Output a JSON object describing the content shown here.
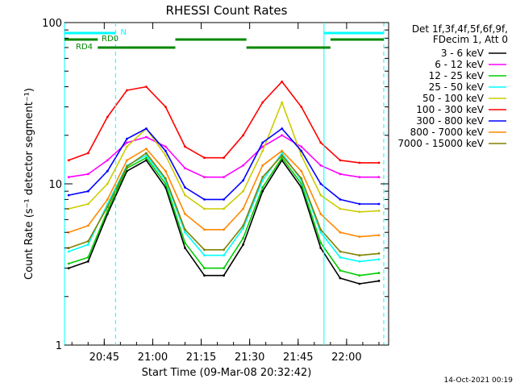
{
  "chart_data": {
    "type": "line",
    "title": "RHESSI Count Rates",
    "xlabel": "Start Time (09-Mar-08 20:32:42)",
    "ylabel": "Count Rate (s⁻¹ detector segment⁻¹)",
    "y_scale": "log",
    "ylim": [
      1,
      100
    ],
    "xlim": [
      "20:32:42",
      "22:13:00"
    ],
    "x_ticks": [
      "20:45",
      "21:00",
      "21:15",
      "21:30",
      "21:45",
      "22:00"
    ],
    "y_ticks": [
      "1",
      "10",
      "100"
    ],
    "grid": false,
    "legend_header": [
      "Det 1f,3f,4f,5f,6f,9f,",
      "FDecim 1, Att 0"
    ],
    "legend_position": "right",
    "timestamp": "14-Oct-2021 00:19",
    "x": [
      "20:34",
      "20:40",
      "20:46",
      "20:52",
      "20:58",
      "21:04",
      "21:10",
      "21:16",
      "21:22",
      "21:28",
      "21:34",
      "21:40",
      "21:46",
      "21:52",
      "21:58",
      "22:04",
      "22:10"
    ],
    "series": [
      {
        "name": "3 - 6 keV",
        "color": "#000000",
        "values": [
          3.0,
          3.3,
          6.5,
          12.0,
          14.0,
          9.5,
          4.0,
          2.7,
          2.7,
          4.2,
          9.0,
          14.0,
          9.5,
          4.0,
          2.6,
          2.4,
          2.5
        ]
      },
      {
        "name": "6 - 12 keV",
        "color": "#ff00ff",
        "values": [
          11.0,
          11.5,
          14.0,
          18.0,
          19.5,
          17.0,
          12.5,
          11.0,
          11.0,
          13.0,
          17.0,
          20.0,
          17.0,
          13.0,
          11.5,
          11.0,
          11.0
        ]
      },
      {
        "name": "12 - 25 keV",
        "color": "#00cc00",
        "values": [
          3.2,
          3.5,
          6.8,
          12.5,
          14.5,
          10.0,
          4.3,
          3.0,
          3.0,
          4.6,
          9.5,
          14.5,
          10.0,
          4.3,
          2.9,
          2.7,
          2.8
        ]
      },
      {
        "name": "25 - 50 keV",
        "color": "#00ffff",
        "values": [
          3.8,
          4.2,
          7.5,
          13.0,
          15.0,
          10.5,
          5.0,
          3.6,
          3.6,
          5.3,
          10.5,
          15.5,
          10.5,
          5.0,
          3.5,
          3.3,
          3.4
        ]
      },
      {
        "name": "50 - 100 keV",
        "color": "#cccc00",
        "values": [
          7.0,
          7.5,
          10.0,
          17.0,
          22.0,
          15.0,
          8.5,
          7.0,
          7.0,
          9.0,
          16.0,
          32.0,
          15.0,
          8.5,
          7.0,
          6.7,
          6.8
        ]
      },
      {
        "name": "100 - 300 keV",
        "color": "#ff0000",
        "values": [
          14.0,
          15.5,
          26.0,
          38.0,
          40.0,
          30.0,
          17.0,
          14.5,
          14.5,
          20.0,
          32.0,
          43.0,
          30.0,
          18.0,
          14.0,
          13.5,
          13.5
        ]
      },
      {
        "name": "300 - 800 keV",
        "color": "#0000ff",
        "values": [
          8.5,
          9.0,
          12.0,
          19.0,
          22.0,
          16.0,
          9.5,
          8.0,
          8.0,
          10.5,
          18.0,
          22.0,
          16.0,
          10.0,
          8.0,
          7.5,
          7.5
        ]
      },
      {
        "name": "800 - 7000 keV",
        "color": "#ff8800",
        "values": [
          5.0,
          5.5,
          8.0,
          14.0,
          16.5,
          12.0,
          6.5,
          5.2,
          5.2,
          7.0,
          13.0,
          16.0,
          12.0,
          6.5,
          5.0,
          4.7,
          4.8
        ]
      },
      {
        "name": "7000 - 15000 keV",
        "color": "#808000",
        "values": [
          4.0,
          4.4,
          7.2,
          12.8,
          15.5,
          10.8,
          5.2,
          3.9,
          3.9,
          5.5,
          11.0,
          15.0,
          10.8,
          5.2,
          3.8,
          3.6,
          3.7
        ]
      }
    ],
    "annotations": {
      "flag_n": "N",
      "flag_rd0": "RD0",
      "flag_rd4": "RD4",
      "night_intervals": [
        [
          "20:32:42",
          "20:48:30"
        ],
        [
          "21:53:00",
          "22:11:30"
        ]
      ],
      "rd0_intervals": [
        [
          "21:07:00",
          "21:29:00"
        ],
        [
          "21:29:00",
          "21:55:00"
        ],
        [
          "21:55:00",
          "22:11:30"
        ]
      ],
      "rd4_intervals": [
        [
          "20:32:42",
          "20:43:00"
        ],
        [
          "20:43:00",
          "21:07:00"
        ]
      ],
      "night_color": "#00ffff",
      "flag_color": "#008800"
    }
  }
}
